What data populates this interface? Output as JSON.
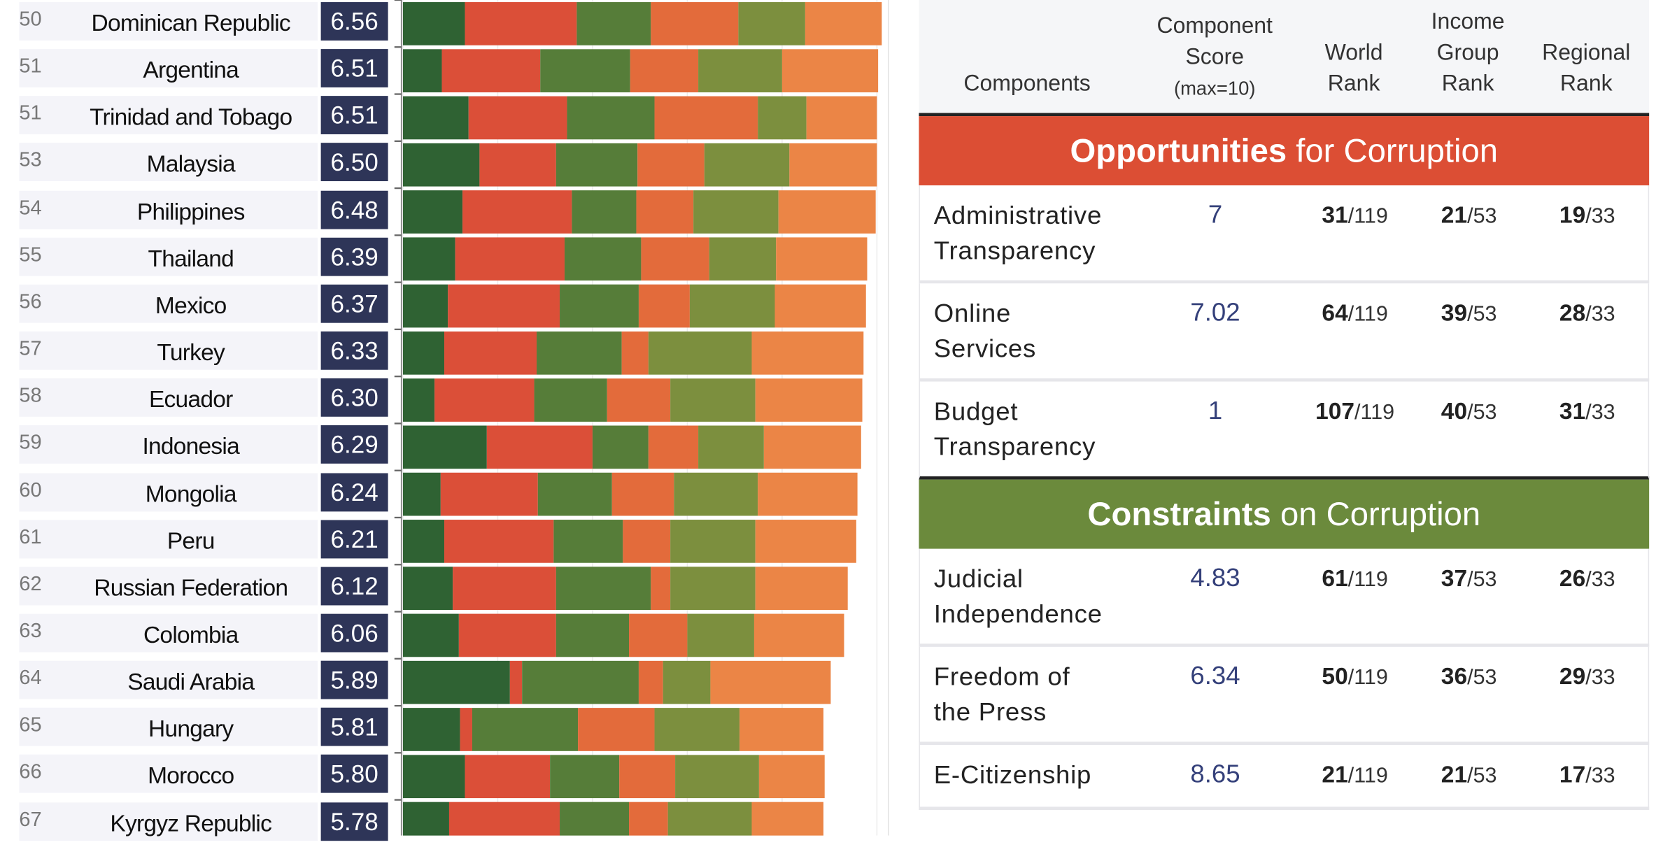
{
  "chart_data": {
    "type": "bar",
    "stacked": true,
    "orientation": "horizontal",
    "segment_colors": [
      "#2f6233",
      "#db4f38",
      "#567d39",
      "#e36b3b",
      "#7c8f3e",
      "#eb8546"
    ],
    "rows": [
      {
        "rank": "50",
        "name": "Dominican Republic",
        "score": "6.56",
        "segments": [
          5.1,
          9.2,
          6.1,
          7.2,
          5.5,
          6.3
        ]
      },
      {
        "rank": "51",
        "name": "Argentina",
        "score": "6.51",
        "segments": [
          3.2,
          8.1,
          7.4,
          5.6,
          6.9,
          7.9
        ]
      },
      {
        "rank": "51",
        "name": "Trinidad and Tobago",
        "score": "6.51",
        "segments": [
          5.4,
          8.1,
          7.2,
          8.5,
          4.0,
          5.8
        ]
      },
      {
        "rank": "53",
        "name": "Malaysia",
        "score": "6.50",
        "segments": [
          6.3,
          6.3,
          6.7,
          5.5,
          7.0,
          7.2
        ]
      },
      {
        "rank": "54",
        "name": "Philippines",
        "score": "6.48",
        "segments": [
          4.9,
          9.0,
          5.3,
          4.7,
          7.0,
          8.0
        ]
      },
      {
        "rank": "55",
        "name": "Thailand",
        "score": "6.39",
        "segments": [
          4.3,
          9.0,
          6.3,
          5.6,
          5.5,
          7.5
        ]
      },
      {
        "rank": "56",
        "name": "Mexico",
        "score": "6.37",
        "segments": [
          3.7,
          9.2,
          6.5,
          4.2,
          7.0,
          7.5
        ]
      },
      {
        "rank": "57",
        "name": "Turkey",
        "score": "6.33",
        "segments": [
          3.4,
          7.6,
          7.0,
          2.2,
          8.5,
          9.2
        ]
      },
      {
        "rank": "58",
        "name": "Ecuador",
        "score": "6.30",
        "segments": [
          2.6,
          8.2,
          6.0,
          5.2,
          7.0,
          8.8
        ]
      },
      {
        "rank": "59",
        "name": "Indonesia",
        "score": "6.29",
        "segments": [
          6.9,
          8.7,
          4.6,
          4.1,
          5.4,
          8.0
        ]
      },
      {
        "rank": "60",
        "name": "Mongolia",
        "score": "6.24",
        "segments": [
          3.1,
          8.0,
          6.1,
          5.1,
          6.9,
          8.2
        ]
      },
      {
        "rank": "61",
        "name": "Peru",
        "score": "6.21",
        "segments": [
          3.4,
          9.0,
          5.7,
          3.9,
          7.0,
          8.3
        ]
      },
      {
        "rank": "62",
        "name": "Russian Federation",
        "score": "6.12",
        "segments": [
          4.1,
          8.5,
          7.8,
          1.6,
          7.0,
          7.6
        ]
      },
      {
        "rank": "63",
        "name": "Colombia",
        "score": "6.06",
        "segments": [
          4.6,
          8.0,
          6.0,
          4.8,
          5.5,
          7.4
        ]
      },
      {
        "rank": "64",
        "name": "Saudi Arabia",
        "score": "5.89",
        "segments": [
          8.8,
          1.0,
          9.6,
          2.0,
          3.9,
          9.9
        ]
      },
      {
        "rank": "65",
        "name": "Hungary",
        "score": "5.81",
        "segments": [
          4.7,
          1.0,
          8.7,
          6.3,
          7.0,
          6.9
        ]
      },
      {
        "rank": "66",
        "name": "Morocco",
        "score": "5.80",
        "segments": [
          5.1,
          7.0,
          5.7,
          4.6,
          6.9,
          5.4
        ]
      },
      {
        "rank": "67",
        "name": "Kyrgyz Republic",
        "score": "5.78",
        "segments": [
          3.8,
          9.1,
          5.7,
          3.2,
          6.9,
          5.9
        ]
      }
    ]
  },
  "table": {
    "headers": {
      "components": "Components",
      "score_1": "Component",
      "score_2": "Score",
      "score_3": "(max=10)",
      "world_1": "World",
      "world_2": "Rank",
      "income_1": "Income",
      "income_2": "Group",
      "income_3": "Rank",
      "regional_1": "Regional",
      "regional_2": "Rank"
    },
    "sections": [
      {
        "title_bold": "Opportunities",
        "title_rest": " for Corruption",
        "color": "#dc4e34",
        "rows": [
          {
            "line1": "Administrative",
            "line2": "Transparency",
            "score": "7",
            "world": "31",
            "world_tot": "/119",
            "income": "21",
            "income_tot": "/53",
            "regional": "19",
            "regional_tot": "/33"
          },
          {
            "line1": "Online",
            "line2": "Services",
            "score": "7.02",
            "world": "64",
            "world_tot": "/119",
            "income": "39",
            "income_tot": "/53",
            "regional": "28",
            "regional_tot": "/33"
          },
          {
            "line1": "Budget",
            "line2": "Transparency",
            "score": "1",
            "world": "107",
            "world_tot": "/119",
            "income": "40",
            "income_tot": "/53",
            "regional": "31",
            "regional_tot": "/33"
          }
        ]
      },
      {
        "title_bold": "Constraints",
        "title_rest": " on Corruption",
        "color": "#6b8a3c",
        "rows": [
          {
            "line1": "Judicial",
            "line2": "Independence",
            "score": "4.83",
            "world": "61",
            "world_tot": "/119",
            "income": "37",
            "income_tot": "/53",
            "regional": "26",
            "regional_tot": "/33"
          },
          {
            "line1": "Freedom of",
            "line2": "the Press",
            "score": "6.34",
            "world": "50",
            "world_tot": "/119",
            "income": "36",
            "income_tot": "/53",
            "regional": "29",
            "regional_tot": "/33"
          },
          {
            "line1": "E-Citizenship",
            "line2": "",
            "score": "8.65",
            "world": "21",
            "world_tot": "/119",
            "income": "21",
            "income_tot": "/53",
            "regional": "17",
            "regional_tot": "/33"
          }
        ]
      }
    ]
  }
}
